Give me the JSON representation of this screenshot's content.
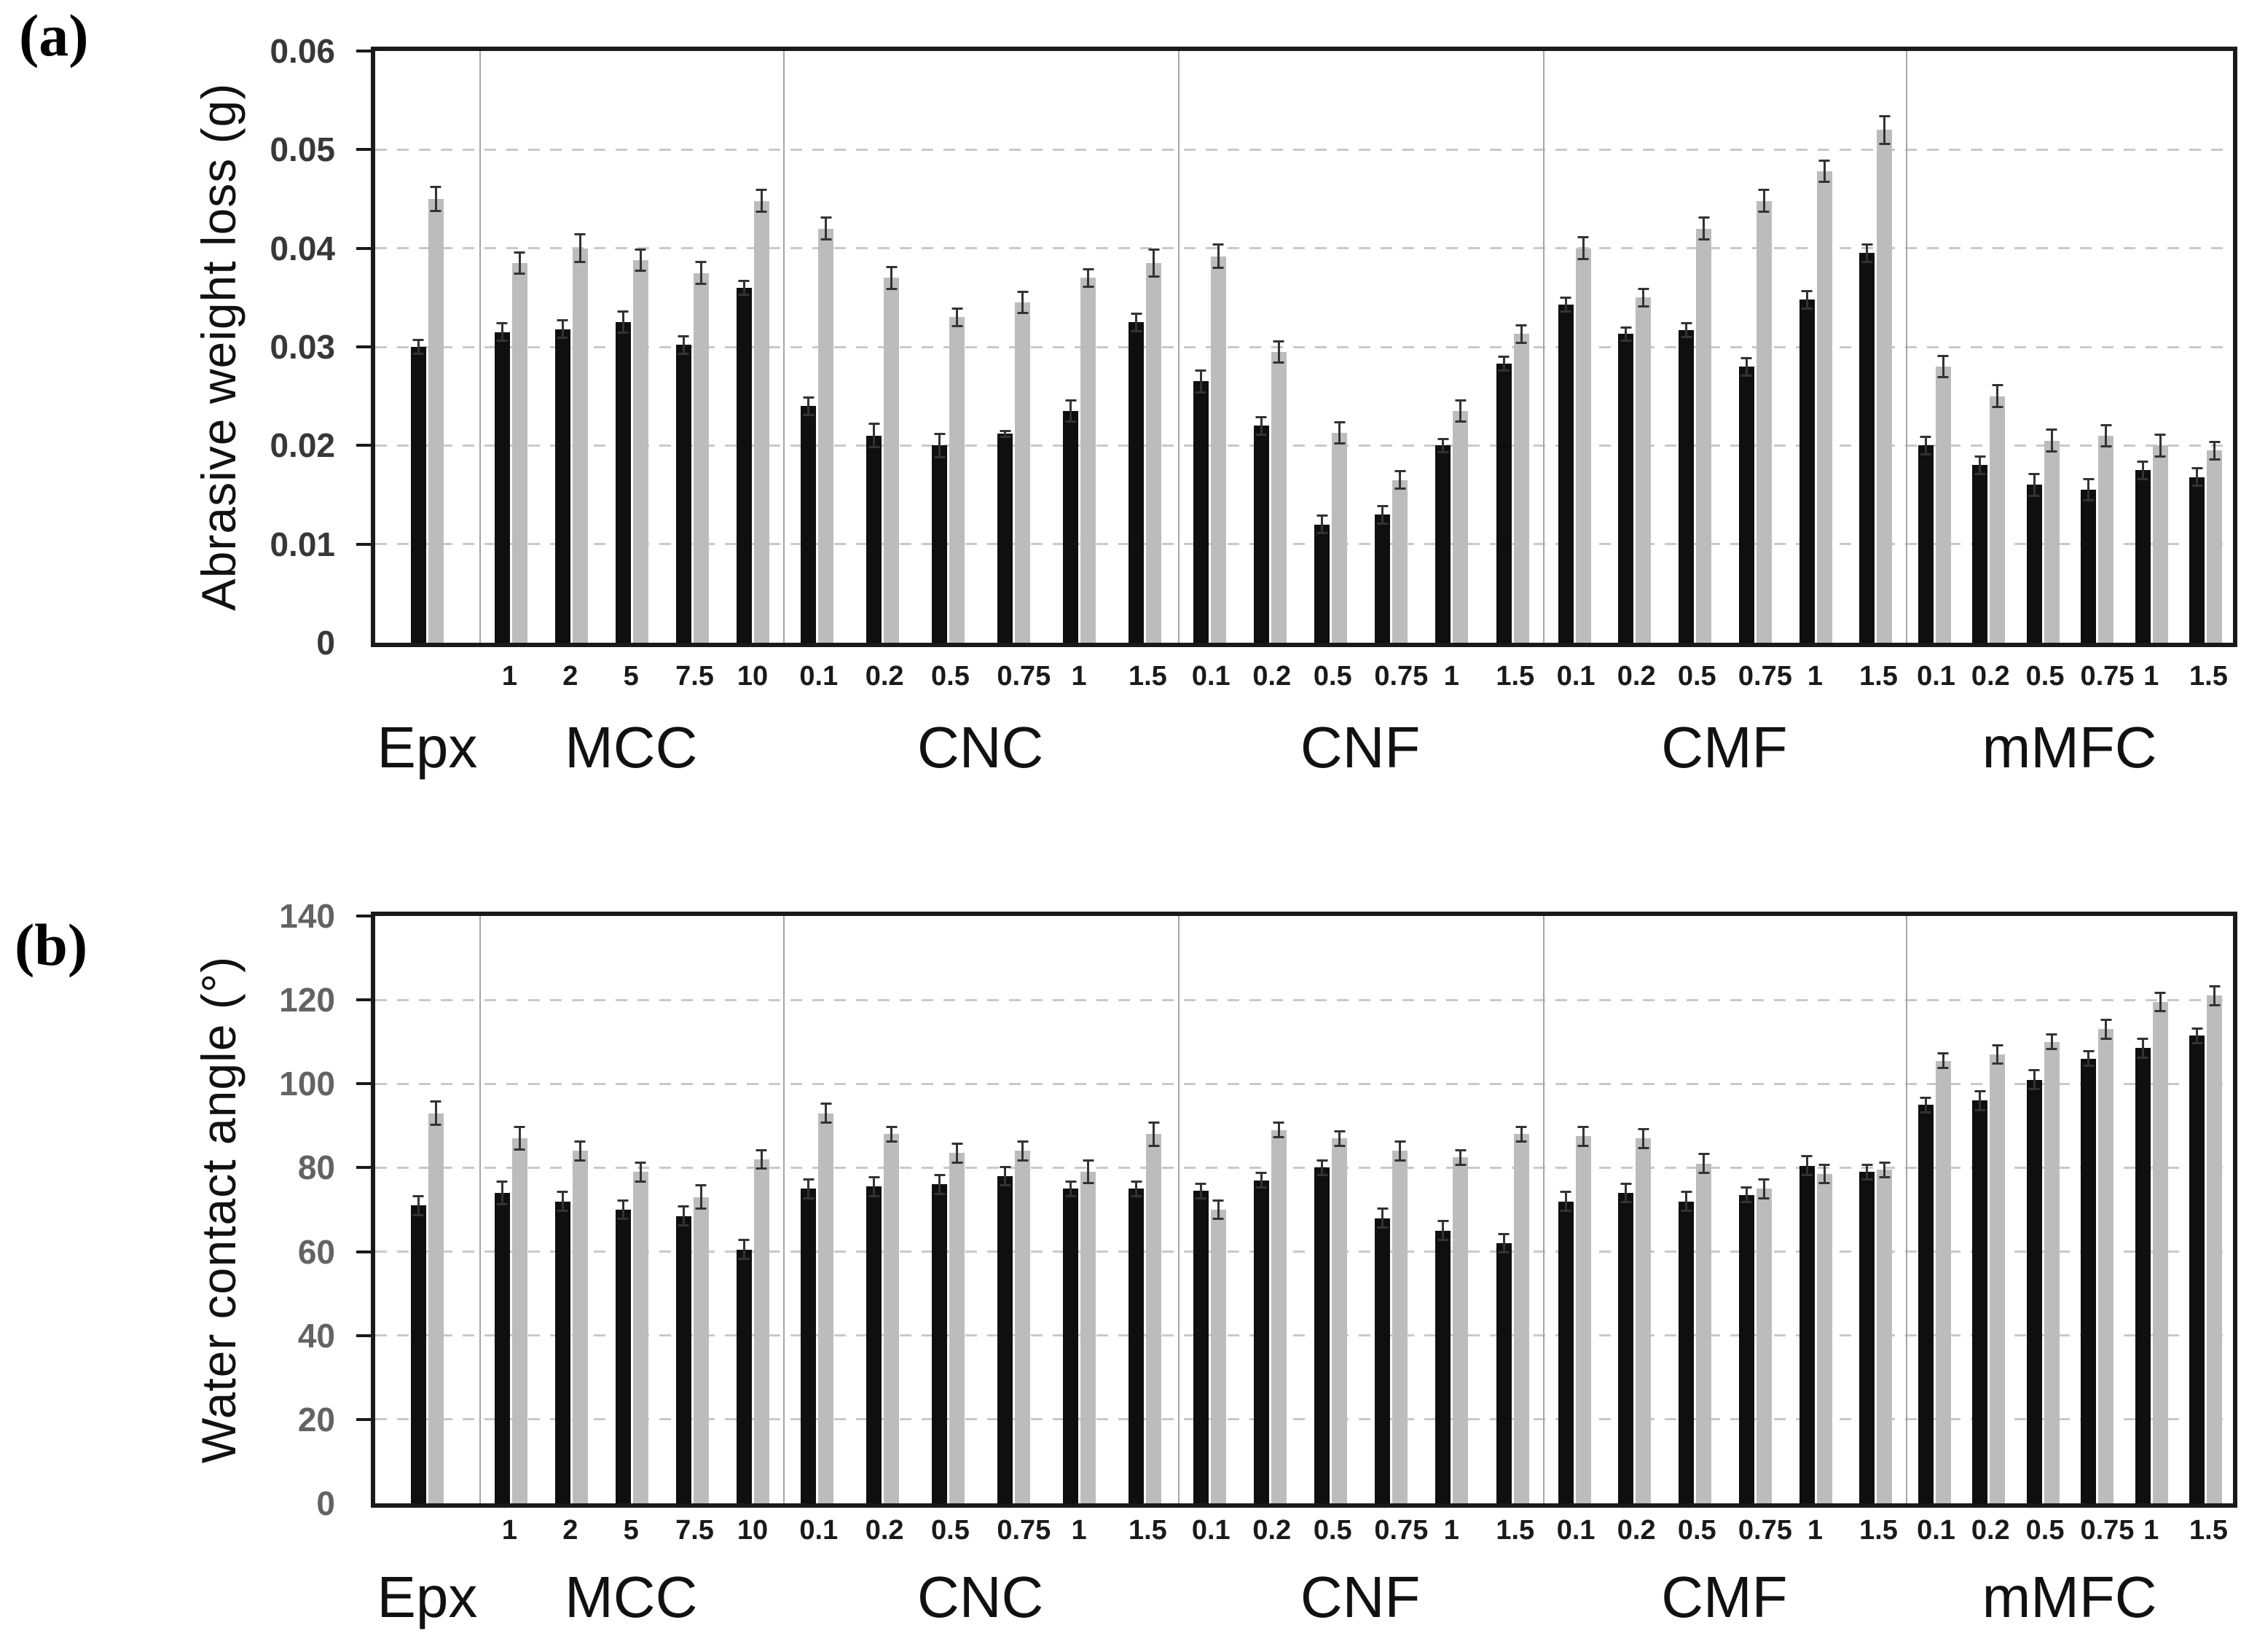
{
  "colors": {
    "bar_black": "#0f0f0f",
    "bar_gray": "#bcbcbc",
    "error": "#333333",
    "grid": "#c9c9c9",
    "separator": "#a6a6a6",
    "frame": "#1a1a1a"
  },
  "chart_data": [
    {
      "id": "a",
      "type": "bar",
      "panel_label": "(a)",
      "title": "",
      "xlabel": "",
      "ylabel": "Abrasive weight loss (g)",
      "ylim": [
        0,
        0.06
      ],
      "yticks": [
        0,
        0.01,
        0.02,
        0.03,
        0.04,
        0.05,
        0.06
      ],
      "ytick_labels": [
        "0",
        "0.01",
        "0.02",
        "0.03",
        "0.04",
        "0.05",
        "0.06"
      ],
      "grid": "dashed-horizontal",
      "legend": "none",
      "series_order": [
        "black",
        "gray"
      ],
      "groups": [
        {
          "label": "Epx",
          "categories": [
            ""
          ],
          "series": {
            "black": {
              "values": [
                0.03
              ],
              "errors": [
                0.0008
              ]
            },
            "gray": {
              "values": [
                0.045
              ],
              "errors": [
                0.0013
              ]
            }
          }
        },
        {
          "label": "MCC",
          "categories": [
            "1",
            "2",
            "5",
            "7.5",
            "10"
          ],
          "series": {
            "black": {
              "values": [
                0.0315,
                0.0318,
                0.0325,
                0.0302,
                0.036
              ],
              "errors": [
                0.001,
                0.001,
                0.0012,
                0.001,
                0.0008
              ]
            },
            "gray": {
              "values": [
                0.0385,
                0.04,
                0.0388,
                0.0375,
                0.0448
              ],
              "errors": [
                0.0012,
                0.0015,
                0.0012,
                0.0012,
                0.0012
              ]
            }
          }
        },
        {
          "label": "CNC",
          "categories": [
            "0.1",
            "0.2",
            "0.5",
            "0.75",
            "1",
            "1.5"
          ],
          "series": {
            "black": {
              "values": [
                0.024,
                0.021,
                0.02,
                0.0212,
                0.0235,
                0.0325
              ],
              "errors": [
                0.001,
                0.0013,
                0.0013,
                0.0004,
                0.0012,
                0.001
              ]
            },
            "gray": {
              "values": [
                0.042,
                0.037,
                0.033,
                0.0345,
                0.037,
                0.0385
              ],
              "errors": [
                0.0012,
                0.0012,
                0.001,
                0.0012,
                0.001,
                0.0015
              ]
            }
          }
        },
        {
          "label": "CNF",
          "categories": [
            "0.1",
            "0.2",
            "0.5",
            "0.75",
            "1",
            "1.5"
          ],
          "series": {
            "black": {
              "values": [
                0.0265,
                0.022,
                0.012,
                0.013,
                0.02,
                0.0283
              ],
              "errors": [
                0.0012,
                0.001,
                0.001,
                0.001,
                0.0008,
                0.0008
              ]
            },
            "gray": {
              "values": [
                0.0392,
                0.0295,
                0.0213,
                0.0165,
                0.0235,
                0.0313
              ],
              "errors": [
                0.0013,
                0.0012,
                0.0012,
                0.001,
                0.0012,
                0.001
              ]
            }
          }
        },
        {
          "label": "CMF",
          "categories": [
            "0.1",
            "0.2",
            "0.5",
            "0.75",
            "1",
            "1.5"
          ],
          "series": {
            "black": {
              "values": [
                0.0343,
                0.0313,
                0.0317,
                0.028,
                0.0348,
                0.0395
              ],
              "errors": [
                0.0008,
                0.0008,
                0.0008,
                0.001,
                0.001,
                0.001
              ]
            },
            "gray": {
              "values": [
                0.04,
                0.035,
                0.042,
                0.0448,
                0.0478,
                0.052
              ],
              "errors": [
                0.0012,
                0.001,
                0.0012,
                0.0012,
                0.0012,
                0.0015
              ]
            }
          }
        },
        {
          "label": "mMFC",
          "categories": [
            "0.1",
            "0.2",
            "0.5",
            "0.75",
            "1",
            "1.5"
          ],
          "series": {
            "black": {
              "values": [
                0.02,
                0.018,
                0.016,
                0.0155,
                0.0175,
                0.0168
              ],
              "errors": [
                0.001,
                0.001,
                0.0012,
                0.0012,
                0.001,
                0.001
              ]
            },
            "gray": {
              "values": [
                0.028,
                0.025,
                0.0205,
                0.021,
                0.02,
                0.0195
              ],
              "errors": [
                0.0012,
                0.0012,
                0.0012,
                0.0012,
                0.0012,
                0.001
              ]
            }
          }
        }
      ]
    },
    {
      "id": "b",
      "type": "bar",
      "panel_label": "(b)",
      "title": "",
      "xlabel": "",
      "ylabel": "Water contact angle (°)",
      "ylim": [
        0,
        140
      ],
      "yticks": [
        0,
        20,
        40,
        60,
        80,
        100,
        120,
        140
      ],
      "ytick_labels": [
        "0",
        "20",
        "40",
        "60",
        "80",
        "100",
        "120",
        "140"
      ],
      "grid": "dashed-horizontal",
      "legend": "none",
      "series_order": [
        "black",
        "gray"
      ],
      "groups": [
        {
          "label": "Epx",
          "categories": [
            ""
          ],
          "series": {
            "black": {
              "values": [
                71
              ],
              "errors": [
                2.5
              ]
            },
            "gray": {
              "values": [
                93
              ],
              "errors": [
                3
              ]
            }
          }
        },
        {
          "label": "MCC",
          "categories": [
            "1",
            "2",
            "5",
            "7.5",
            "10"
          ],
          "series": {
            "black": {
              "values": [
                74,
                72,
                70,
                68.5,
                60.5
              ],
              "errors": [
                3,
                2.5,
                2.5,
                2.5,
                2.5
              ]
            },
            "gray": {
              "values": [
                87,
                84,
                79,
                73,
                82
              ],
              "errors": [
                3,
                2.5,
                2.5,
                3,
                2.5
              ]
            }
          }
        },
        {
          "label": "CNC",
          "categories": [
            "0.1",
            "0.2",
            "0.5",
            "0.75",
            "1",
            "1.5"
          ],
          "series": {
            "black": {
              "values": [
                75,
                75.5,
                76,
                78,
                75,
                75
              ],
              "errors": [
                2.5,
                2.5,
                2.5,
                2.5,
                2,
                2
              ]
            },
            "gray": {
              "values": [
                93,
                88,
                83.5,
                84,
                79,
                88
              ],
              "errors": [
                2.5,
                2,
                2.5,
                2.5,
                3,
                3
              ]
            }
          }
        },
        {
          "label": "CNF",
          "categories": [
            "0.1",
            "0.2",
            "0.5",
            "0.75",
            "1",
            "1.5"
          ],
          "series": {
            "black": {
              "values": [
                74.5,
                77,
                80,
                68,
                65,
                62
              ],
              "errors": [
                2,
                2,
                2,
                2.5,
                2.5,
                2.5
              ]
            },
            "gray": {
              "values": [
                70,
                89,
                87,
                84,
                82.5,
                88
              ],
              "errors": [
                2.5,
                2,
                2,
                2.5,
                2,
                2
              ]
            }
          }
        },
        {
          "label": "CMF",
          "categories": [
            "0.1",
            "0.2",
            "0.5",
            "0.75",
            "1",
            "1.5"
          ],
          "series": {
            "black": {
              "values": [
                72,
                74,
                72,
                73.5,
                80.5,
                79
              ],
              "errors": [
                2.5,
                2.5,
                2.5,
                2,
                2.5,
                2
              ]
            },
            "gray": {
              "values": [
                87.5,
                87,
                81,
                75,
                78.5,
                79.5
              ],
              "errors": [
                2.5,
                2.5,
                2.5,
                2.5,
                2.5,
                2
              ]
            }
          }
        },
        {
          "label": "mMFC",
          "categories": [
            "0.1",
            "0.2",
            "0.5",
            "0.75",
            "1",
            "1.5"
          ],
          "series": {
            "black": {
              "values": [
                95,
                96,
                101,
                106,
                108.5,
                111.5
              ],
              "errors": [
                2,
                2.5,
                2.5,
                2,
                2.5,
                2
              ]
            },
            "gray": {
              "values": [
                105.5,
                107,
                110,
                113,
                119.5,
                121
              ],
              "errors": [
                2,
                2.5,
                2,
                2.5,
                2.5,
                2.5
              ]
            }
          }
        }
      ]
    }
  ]
}
